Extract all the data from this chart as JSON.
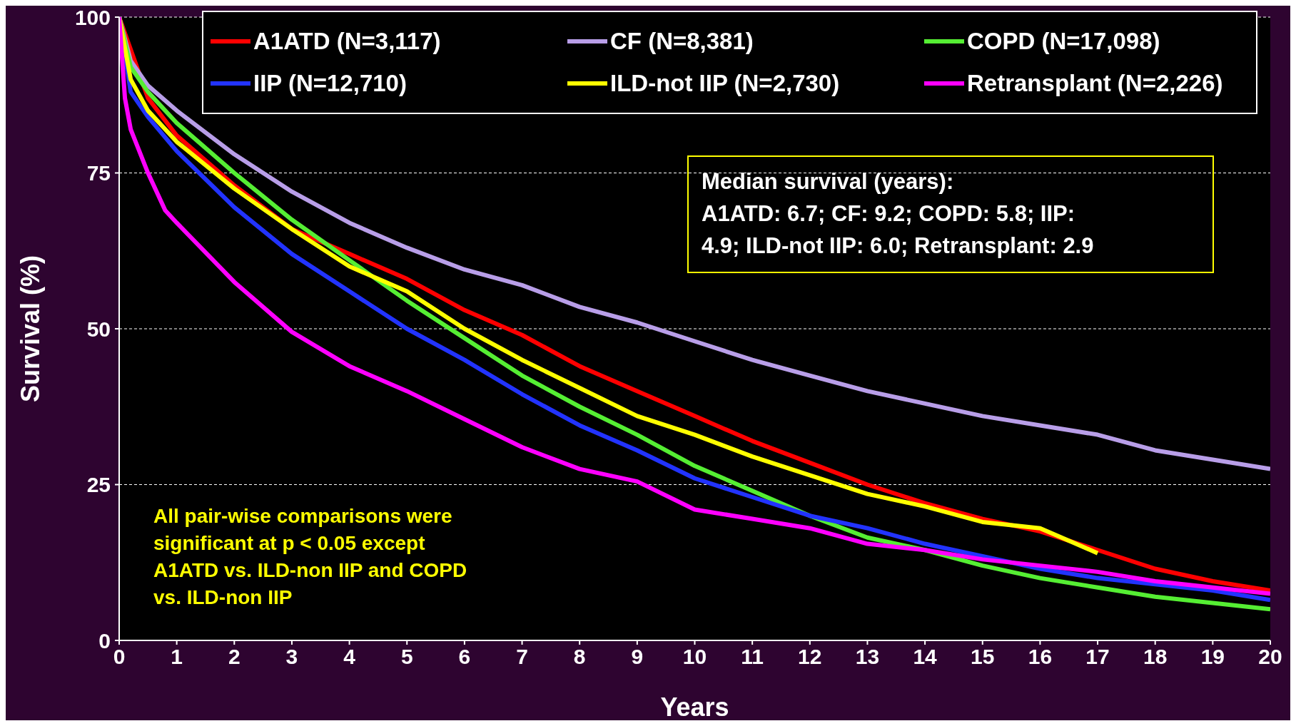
{
  "chart_data": {
    "type": "line",
    "xlabel": "Years",
    "ylabel": "Survival (%)",
    "xlim": [
      0,
      20
    ],
    "xticks": [
      0,
      1,
      2,
      3,
      4,
      5,
      6,
      7,
      8,
      9,
      10,
      11,
      12,
      13,
      14,
      15,
      16,
      17,
      18,
      19,
      20
    ],
    "ylim": [
      0,
      100
    ],
    "yticks": [
      0,
      25,
      50,
      75,
      100
    ],
    "grid": "y",
    "legend": "top",
    "marker": "none",
    "line_style": "solid",
    "series": [
      {
        "name": "A1ATD (N=3,117)",
        "color": "#ff0000",
        "x": [
          0,
          0.5,
          1,
          2,
          3,
          4,
          5,
          6,
          7,
          8,
          9,
          10,
          11,
          12,
          13,
          14,
          15,
          16,
          17,
          18,
          19,
          20
        ],
        "values": [
          100,
          87,
          81,
          73,
          66,
          62,
          58,
          53,
          49,
          44,
          40,
          36,
          32,
          28.5,
          25,
          22,
          19.5,
          17.5,
          14.5,
          11.5,
          9.5,
          8
        ]
      },
      {
        "name": "CF (N=8,381)",
        "color": "#b89ee8",
        "x": [
          0,
          0.2,
          0.5,
          1,
          2,
          3,
          4,
          5,
          6,
          7,
          8,
          9,
          10,
          11,
          12,
          13,
          14,
          15,
          16,
          17,
          18,
          19,
          20
        ],
        "values": [
          100,
          93,
          89,
          85,
          78,
          72,
          67,
          63,
          59.5,
          57,
          53.5,
          51,
          48,
          45,
          42.5,
          40,
          38,
          36,
          34.5,
          33,
          30.5,
          29,
          27.5
        ]
      },
      {
        "name": "COPD (N=17,098)",
        "color": "#55ee33",
        "x": [
          0,
          0.2,
          0.5,
          1,
          2,
          3,
          4,
          5,
          6,
          7,
          8,
          9,
          10,
          11,
          12,
          13,
          14,
          15,
          16,
          17,
          18,
          19,
          20
        ],
        "values": [
          100,
          92,
          88,
          83,
          75,
          67.5,
          61,
          54.5,
          48.5,
          42.5,
          37.5,
          33,
          28,
          24,
          20,
          16.5,
          14.5,
          12,
          10,
          8.5,
          7,
          6,
          5
        ]
      },
      {
        "name": "IIP (N=12,710)",
        "color": "#2233ff",
        "x": [
          0,
          0.2,
          0.5,
          1,
          2,
          3,
          4,
          5,
          6,
          7,
          8,
          9,
          10,
          11,
          12,
          13,
          14,
          15,
          16,
          17,
          18,
          19,
          20
        ],
        "values": [
          100,
          88,
          84,
          78.5,
          69.5,
          62,
          56,
          50,
          45,
          39.5,
          34.5,
          30.5,
          26,
          23,
          20,
          18,
          15.5,
          13.5,
          11.5,
          10,
          9,
          8,
          6.5
        ]
      },
      {
        "name": "ILD-not IIP (N=2,730)",
        "color": "#ffff00",
        "x": [
          0,
          0.2,
          0.5,
          1,
          2,
          3,
          4,
          5,
          6,
          7,
          8,
          9,
          10,
          11,
          12,
          13,
          14,
          15,
          16,
          17
        ],
        "values": [
          100,
          90,
          85,
          80,
          72.5,
          66,
          60,
          56,
          50,
          45,
          40.5,
          36,
          33,
          29.5,
          26.5,
          23.5,
          21.5,
          19,
          18,
          14
        ]
      },
      {
        "name": "Retransplant (N=2,226)",
        "color": "#ff00ff",
        "x": [
          0,
          0.1,
          0.2,
          0.5,
          0.8,
          1,
          2,
          3,
          4,
          5,
          6,
          7,
          8,
          9,
          10,
          11,
          12,
          13,
          14,
          15,
          16,
          17,
          18,
          19,
          20
        ],
        "values": [
          100,
          87,
          82,
          75,
          69,
          67,
          57.5,
          49.5,
          44,
          40,
          35.5,
          31,
          27.5,
          25.5,
          21,
          19.5,
          18,
          15.5,
          14.5,
          13,
          12,
          11,
          9.5,
          8.5,
          7.5
        ]
      }
    ],
    "annotations": [
      "Median survival (years):\nA1ATD: 6.7; CF: 9.2; COPD: 5.8; IIP:\n4.9;  ILD-not IIP: 6.0;  Retransplant: 2.9",
      "All pair-wise comparisons were\nsignificant at p < 0.05 except\nA1ATD vs. ILD-non IIP and COPD\nvs. ILD-non IIP"
    ]
  }
}
